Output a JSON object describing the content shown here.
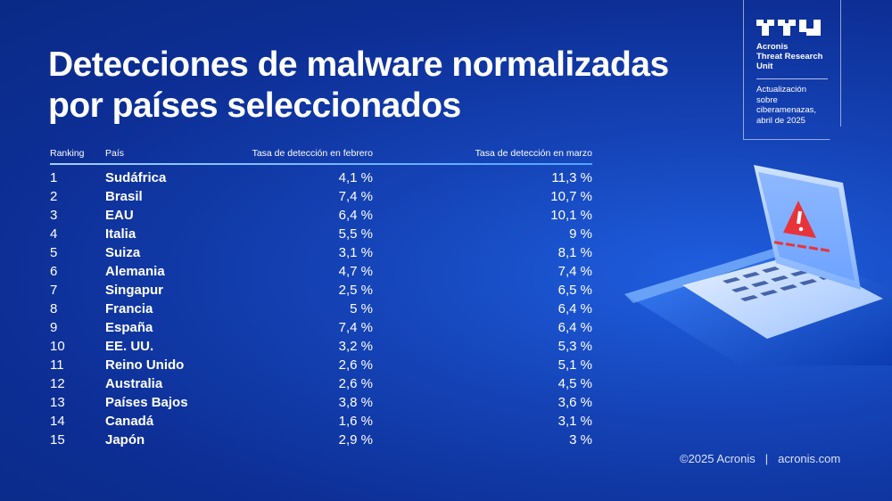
{
  "title": "Detecciones de malware normalizadas por países seleccionados",
  "badge": {
    "unit_name": "Acronis\nThreat Research\nUnit",
    "update_text": "Actualización sobre ciberamenazas, abril de 2025"
  },
  "table": {
    "headers": {
      "rank": "Ranking",
      "country": "País",
      "feb": "Tasa de detección en febrero",
      "mar": "Tasa de detección en marzo"
    },
    "rows": [
      {
        "rank": "1",
        "country": "Sudáfrica",
        "feb": "4,1 %",
        "mar": "11,3 %"
      },
      {
        "rank": "2",
        "country": "Brasil",
        "feb": "7,4 %",
        "mar": "10,7 %"
      },
      {
        "rank": "3",
        "country": "EAU",
        "feb": "6,4 %",
        "mar": "10,1 %"
      },
      {
        "rank": "4",
        "country": "Italia",
        "feb": "5,5 %",
        "mar": "9 %"
      },
      {
        "rank": "5",
        "country": "Suiza",
        "feb": "3,1 %",
        "mar": "8,1 %"
      },
      {
        "rank": "6",
        "country": "Alemania",
        "feb": "4,7 %",
        "mar": "7,4 %"
      },
      {
        "rank": "7",
        "country": "Singapur",
        "feb": "2,5 %",
        "mar": "6,5 %"
      },
      {
        "rank": "8",
        "country": "Francia",
        "feb": "5 %",
        "mar": "6,4 %"
      },
      {
        "rank": "9",
        "country": "España",
        "feb": "7,4 %",
        "mar": "6,4 %"
      },
      {
        "rank": "10",
        "country": "EE. UU.",
        "feb": "3,2 %",
        "mar": "5,3 %"
      },
      {
        "rank": "11",
        "country": "Reino Unido",
        "feb": "2,6 %",
        "mar": "5,1 %"
      },
      {
        "rank": "12",
        "country": "Australia",
        "feb": "2,6 %",
        "mar": "4,5 %"
      },
      {
        "rank": "13",
        "country": "Países Bajos",
        "feb": "3,8 %",
        "mar": "3,6 %"
      },
      {
        "rank": "14",
        "country": "Canadá",
        "feb": "1,6 %",
        "mar": "3,1 %"
      },
      {
        "rank": "15",
        "country": "Japón",
        "feb": "2,9 %",
        "mar": "3 %"
      }
    ]
  },
  "footer": {
    "copyright": "©2025 Acronis",
    "separator": "|",
    "site": "acronis.com"
  },
  "illustration": {
    "subject": "laptop-with-warning-icon",
    "warning_color": "#e8333a",
    "accent_color": "#4da3ff"
  }
}
